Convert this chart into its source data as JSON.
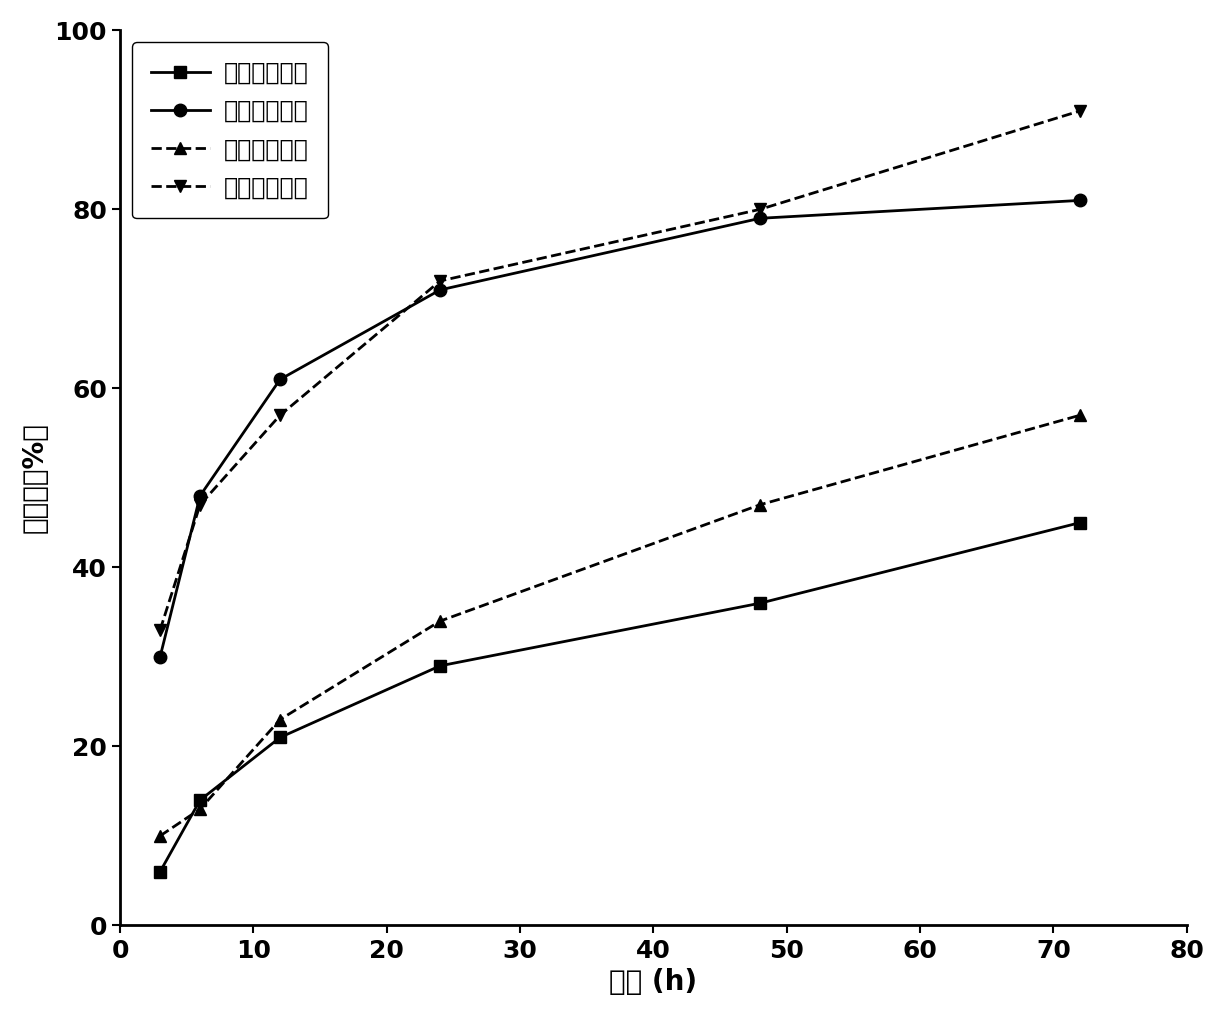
{
  "x_values": [
    3,
    6,
    12,
    24,
    48,
    72
  ],
  "series": [
    {
      "label": "驯化前毒死蜱",
      "y": [
        6,
        14,
        21,
        29,
        36,
        45
      ],
      "linestyle": "solid",
      "marker": "s",
      "marker_size": 9
    },
    {
      "label": "驯化后毒死蜱",
      "y": [
        30,
        48,
        61,
        71,
        79,
        81
      ],
      "linestyle": "solid",
      "marker": "o",
      "marker_size": 9
    },
    {
      "label": "驯化前多菌灵",
      "y": [
        10,
        13,
        23,
        34,
        47,
        57
      ],
      "linestyle": "dashed",
      "marker": "^",
      "marker_size": 9
    },
    {
      "label": "驯化后多菌灵",
      "y": [
        33,
        47,
        57,
        72,
        80,
        91
      ],
      "linestyle": "dashed",
      "marker": "v",
      "marker_size": 9
    }
  ],
  "xlabel": "时间 (h)",
  "ylabel": "降解率（%）",
  "xlim": [
    0,
    80
  ],
  "ylim": [
    0,
    100
  ],
  "xticks": [
    0,
    10,
    20,
    30,
    40,
    50,
    60,
    70,
    80
  ],
  "yticks": [
    0,
    20,
    40,
    60,
    80,
    100
  ],
  "color": "black",
  "linewidth": 2.0,
  "xlabel_fontsize": 20,
  "ylabel_fontsize": 20,
  "tick_fontsize": 18,
  "legend_fontsize": 17
}
